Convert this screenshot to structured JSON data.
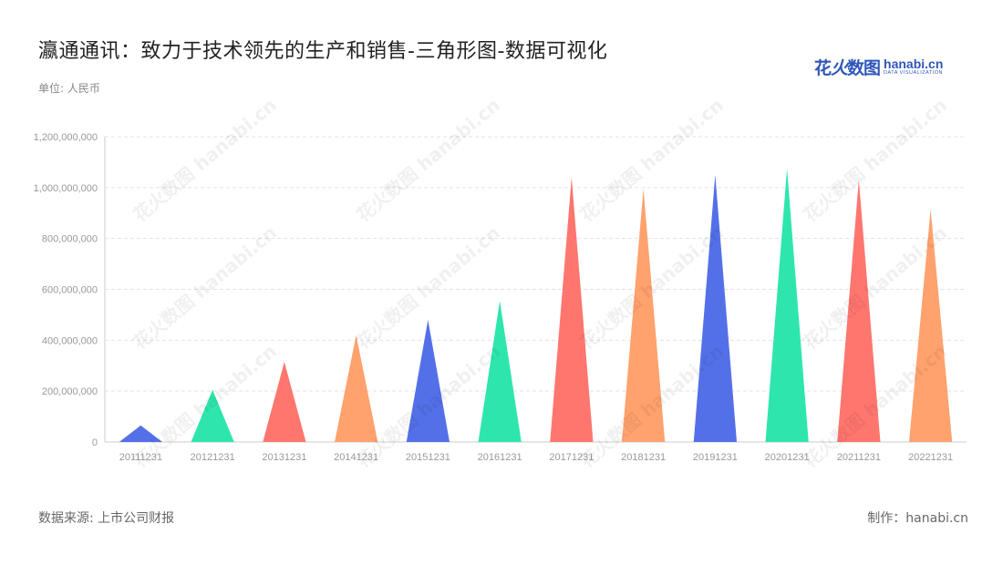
{
  "header": {
    "title": "瀛通通讯：致力于技术领先的生产和销售-三角形图-数据可视化",
    "unit": "单位: 人民币"
  },
  "brand": {
    "cn_a": "花",
    "cn_b": "火",
    "cn_c": "数图",
    "en": "hanabi.cn",
    "sub": "DATA VISUALIZATION"
  },
  "footer": {
    "source": "数据来源: 上市公司财报",
    "credit": "制作：hanabi.cn"
  },
  "watermark": "花火数图 hanabi.cn",
  "colors": {
    "palette": [
      "#5470e8",
      "#2ee6ad",
      "#ff766f",
      "#ffa26e"
    ],
    "grid": "#e3e3e3",
    "axis": "#cccccc"
  },
  "chart_data": {
    "type": "bar",
    "bar_shape": "triangle",
    "title": "",
    "xlabel": "",
    "ylabel": "",
    "categories": [
      "20111231",
      "20121231",
      "20131231",
      "20141231",
      "20151231",
      "20161231",
      "20171231",
      "20181231",
      "20191231",
      "20201231",
      "20211231",
      "20221231"
    ],
    "values": [
      65000000,
      205000000,
      315000000,
      420000000,
      480000000,
      555000000,
      1040000000,
      995000000,
      1050000000,
      1075000000,
      1030000000,
      915000000
    ],
    "ylim": [
      0,
      1200000000
    ],
    "yticks": [
      0,
      200000000,
      400000000,
      600000000,
      800000000,
      1000000000,
      1200000000
    ],
    "ytick_labels": [
      "0",
      "200,000,000",
      "400,000,000",
      "600,000,000",
      "800,000,000",
      "1,000,000,000",
      "1,200,000,000"
    ],
    "grid": true,
    "legend": "none"
  }
}
